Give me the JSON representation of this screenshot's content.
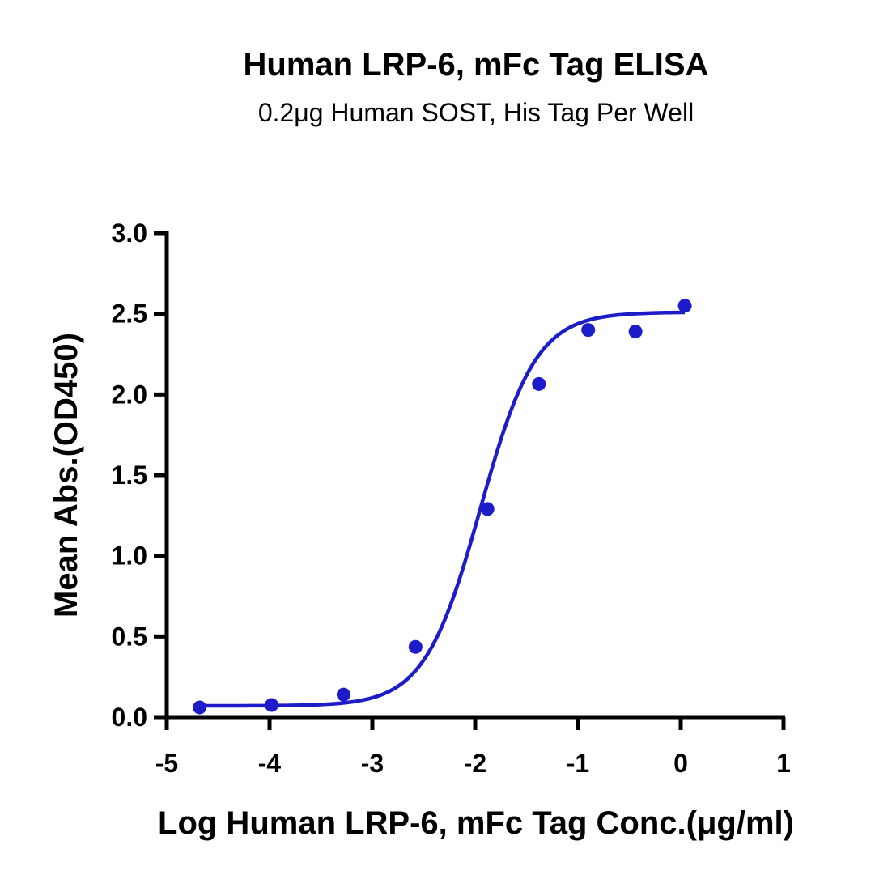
{
  "chart_data": {
    "type": "scatter",
    "title": "Human LRP-6, mFc Tag ELISA",
    "subtitle": "0.2μg Human SOST, His Tag Per Well",
    "xlabel": "Log Human LRP-6, mFc Tag Conc.(μg/ml)",
    "ylabel": "Mean Abs.(OD450)",
    "xlim": [
      -5,
      1
    ],
    "ylim": [
      0.0,
      3.0
    ],
    "x_ticks": [
      -5,
      -4,
      -3,
      -2,
      -1,
      0,
      1
    ],
    "x_tick_labels": [
      "-5",
      "-4",
      "-3",
      "-2",
      "-1",
      "0",
      "1"
    ],
    "y_ticks": [
      0.0,
      0.5,
      1.0,
      1.5,
      2.0,
      2.5,
      3.0
    ],
    "y_tick_labels": [
      "0.0",
      "0.5",
      "1.0",
      "1.5",
      "2.0",
      "2.5",
      "3.0"
    ],
    "grid": false,
    "series": [
      {
        "color": "#1c1cc8",
        "marker": "circle",
        "fit": "4PL sigmoid",
        "x": [
          -4.68,
          -3.98,
          -3.28,
          -2.58,
          -1.88,
          -1.38,
          -0.9,
          -0.44,
          0.04
        ],
        "y": [
          0.06,
          0.075,
          0.14,
          0.435,
          1.29,
          2.065,
          2.4,
          2.39,
          2.55
        ]
      }
    ],
    "fit_params": {
      "bottom": 0.07,
      "top": 2.51,
      "log_ec50": -1.95,
      "hill_slope": 1.6
    }
  }
}
